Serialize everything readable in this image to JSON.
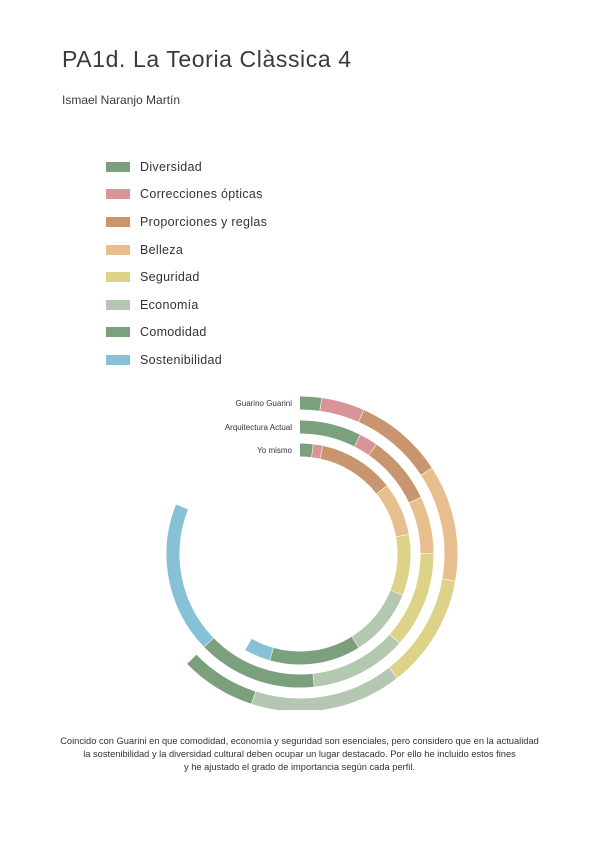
{
  "title": "PA1d. La Teoria Clàssica 4",
  "author": "Ismael Naranjo Martín",
  "categories": [
    {
      "name": "Diversidad",
      "color": "#7ba07e"
    },
    {
      "name": "Correcciones ópticas",
      "color": "#d9949a"
    },
    {
      "name": "Proporciones y reglas",
      "color": "#c8956e"
    },
    {
      "name": "Belleza",
      "color": "#e9be8f"
    },
    {
      "name": "Seguridad",
      "color": "#dcd388"
    },
    {
      "name": "Economía",
      "color": "#b3c7b1"
    },
    {
      "name": "Comodidad",
      "color": "#7ba07e"
    },
    {
      "name": "Sostenibilidad",
      "color": "#86c1d6"
    }
  ],
  "chart_data": {
    "type": "radial-stacked-bar",
    "unit": "degrees of arc (start at 12 o'clock, clockwise)",
    "series": [
      {
        "name": "Guarino Guarini",
        "values": {
          "Diversidad": 8,
          "Correcciones ópticas": 16,
          "Proporciones y reglas": 33,
          "Belleza": 43,
          "Seguridad": 42,
          "Economía": 56,
          "Comodidad": 28,
          "Sostenibilidad": 0
        }
      },
      {
        "name": "Arquitectura Actual",
        "values": {
          "Diversidad": 27,
          "Correcciones ópticas": 8,
          "Proporciones y reglas": 30,
          "Belleza": 25,
          "Seguridad": 42,
          "Economía": 42,
          "Comodidad": 52,
          "Sostenibilidad": 66
        }
      },
      {
        "name": "Yo mismo",
        "values": {
          "Diversidad": 7,
          "Correcciones ópticas": 5,
          "Proporciones y reglas": 40,
          "Belleza": 28,
          "Seguridad": 32,
          "Economía": 36,
          "Comodidad": 48,
          "Sostenibilidad": 14
        }
      },
      {
        "name": "",
        "values": {
          "Diversidad": 0,
          "Correcciones ópticas": 0,
          "Proporciones y reglas": 0,
          "Belleza": 0,
          "Seguridad": 0,
          "Economía": 0,
          "Comodidad": 0,
          "Sostenibilidad": 0
        }
      }
    ]
  },
  "note_lines": [
    "Coincido con Guarini en que comodidad, economía y seguridad son esenciales, pero considero que en la actualidad",
    "la sostenibilidad y la diversidad cultural deben ocupar un lugar destacado. Por ello he incluido estos fines",
    "y he ajustado el grado de importancia según cada perfil."
  ]
}
